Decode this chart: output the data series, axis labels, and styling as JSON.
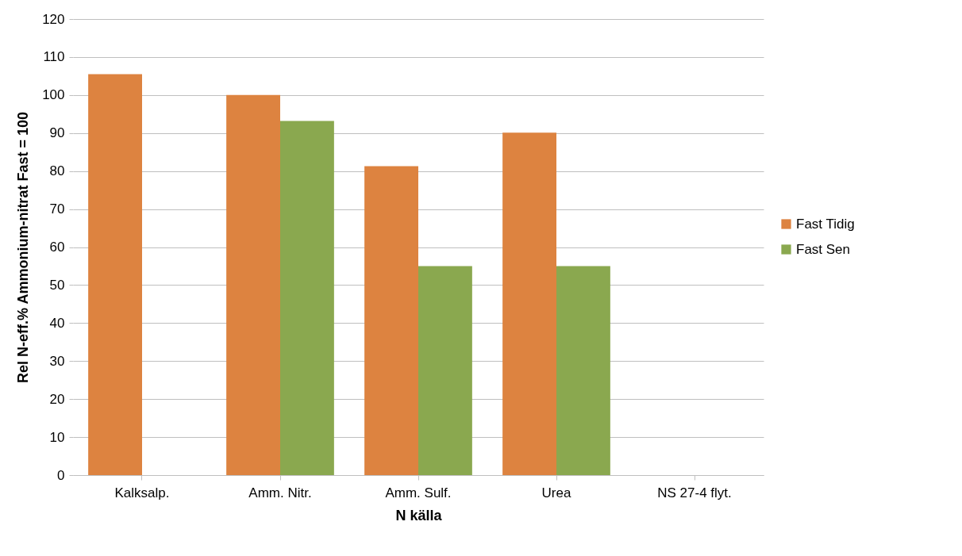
{
  "chart_data": {
    "type": "bar",
    "xlabel": "N källa",
    "ylabel": "Rel N-eff.%    Ammonium-nitrat Fast = 100",
    "categories": [
      "Kalksalp.",
      "Amm. Nitr.",
      "Amm. Sulf.",
      "Urea",
      "NS 27-4 flyt."
    ],
    "series": [
      {
        "name": "Fast Tidig",
        "color": "#dd8340",
        "values": [
          105.5,
          100,
          81.3,
          90.1,
          null
        ]
      },
      {
        "name": "Fast Sen",
        "color": "#8aa84f",
        "values": [
          null,
          93.2,
          55,
          55,
          null
        ]
      }
    ],
    "ylim": [
      0,
      120
    ],
    "yticks": [
      0,
      10,
      20,
      30,
      40,
      50,
      60,
      70,
      80,
      90,
      100,
      110,
      120
    ],
    "grid": "y",
    "legend": "right"
  }
}
